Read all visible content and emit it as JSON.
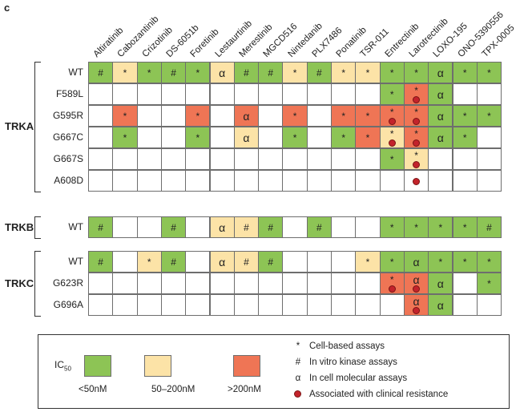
{
  "panel_label": "c",
  "drugs": [
    "Altiratinib",
    "Cabozantinib",
    "Crizotinib",
    "DS-6051b",
    "Foretinib",
    "Lestaurtinib",
    "Merestinib",
    "MGCD516",
    "Nintedanib",
    "PLX7486",
    "Ponatinib",
    "TSR-011",
    "Entrectinib",
    "Larotrectinib",
    "LOXO-195",
    "ONO-5390556",
    "TPX-0005"
  ],
  "colors": {
    "green": "#8dc455",
    "yellow": "#fce3a7",
    "red": "#ef7555",
    "white": "#ffffff",
    "dot": "#c3232b"
  },
  "groups": [
    {
      "name": "TRKA",
      "rows": [
        {
          "label": "WT",
          "cells": [
            [
              "G",
              "#"
            ],
            [
              "Y",
              "*"
            ],
            [
              "G",
              "*"
            ],
            [
              "G",
              "#"
            ],
            [
              "G",
              "*"
            ],
            [
              "Y",
              "α"
            ],
            [
              "G",
              "#"
            ],
            [
              "G",
              "#"
            ],
            [
              "Y",
              "*"
            ],
            [
              "G",
              "#"
            ],
            [
              "Y",
              "*"
            ],
            [
              "Y",
              "*"
            ],
            [
              "G",
              "*"
            ],
            [
              "G",
              "*"
            ],
            [
              "G",
              "α"
            ],
            [
              "G",
              "*"
            ],
            [
              "G",
              "*"
            ]
          ]
        },
        {
          "label": "F589L",
          "cells": [
            [
              "W",
              ""
            ],
            [
              "W",
              ""
            ],
            [
              "W",
              ""
            ],
            [
              "W",
              ""
            ],
            [
              "W",
              ""
            ],
            [
              "W",
              ""
            ],
            [
              "W",
              ""
            ],
            [
              "W",
              ""
            ],
            [
              "W",
              ""
            ],
            [
              "W",
              ""
            ],
            [
              "W",
              ""
            ],
            [
              "W",
              ""
            ],
            [
              "G",
              "*"
            ],
            [
              "R",
              "*",
              1
            ],
            [
              "G",
              "α"
            ],
            [
              "W",
              ""
            ],
            [
              "W",
              ""
            ]
          ]
        },
        {
          "label": "G595R",
          "cells": [
            [
              "W",
              ""
            ],
            [
              "R",
              "*"
            ],
            [
              "W",
              ""
            ],
            [
              "W",
              ""
            ],
            [
              "R",
              "*"
            ],
            [
              "W",
              ""
            ],
            [
              "R",
              "α"
            ],
            [
              "W",
              ""
            ],
            [
              "R",
              "*"
            ],
            [
              "W",
              ""
            ],
            [
              "R",
              "*"
            ],
            [
              "R",
              "*"
            ],
            [
              "R",
              "*",
              1
            ],
            [
              "R",
              "*",
              1
            ],
            [
              "G",
              "α"
            ],
            [
              "G",
              "*"
            ],
            [
              "G",
              "*"
            ]
          ]
        },
        {
          "label": "G667C",
          "cells": [
            [
              "W",
              ""
            ],
            [
              "G",
              "*"
            ],
            [
              "W",
              ""
            ],
            [
              "W",
              ""
            ],
            [
              "G",
              "*"
            ],
            [
              "W",
              ""
            ],
            [
              "Y",
              "α"
            ],
            [
              "W",
              ""
            ],
            [
              "G",
              "*"
            ],
            [
              "W",
              ""
            ],
            [
              "G",
              "*"
            ],
            [
              "R",
              "*"
            ],
            [
              "Y",
              "*",
              1
            ],
            [
              "R",
              "*",
              1
            ],
            [
              "G",
              "α"
            ],
            [
              "G",
              "*"
            ],
            [
              "W",
              ""
            ]
          ]
        },
        {
          "label": "G667S",
          "cells": [
            [
              "W",
              ""
            ],
            [
              "W",
              ""
            ],
            [
              "W",
              ""
            ],
            [
              "W",
              ""
            ],
            [
              "W",
              ""
            ],
            [
              "W",
              ""
            ],
            [
              "W",
              ""
            ],
            [
              "W",
              ""
            ],
            [
              "W",
              ""
            ],
            [
              "W",
              ""
            ],
            [
              "W",
              ""
            ],
            [
              "W",
              ""
            ],
            [
              "G",
              "*"
            ],
            [
              "Y",
              "*",
              1
            ],
            [
              "W",
              ""
            ],
            [
              "W",
              ""
            ],
            [
              "W",
              ""
            ]
          ]
        },
        {
          "label": "A608D",
          "cells": [
            [
              "W",
              ""
            ],
            [
              "W",
              ""
            ],
            [
              "W",
              ""
            ],
            [
              "W",
              ""
            ],
            [
              "W",
              ""
            ],
            [
              "W",
              ""
            ],
            [
              "W",
              ""
            ],
            [
              "W",
              ""
            ],
            [
              "W",
              ""
            ],
            [
              "W",
              ""
            ],
            [
              "W",
              ""
            ],
            [
              "W",
              ""
            ],
            [
              "W",
              ""
            ],
            [
              "W",
              "",
              1
            ],
            [
              "W",
              ""
            ],
            [
              "W",
              ""
            ],
            [
              "W",
              ""
            ]
          ]
        }
      ]
    },
    {
      "name": "TRKB",
      "rows": [
        {
          "label": "WT",
          "cells": [
            [
              "G",
              "#"
            ],
            [
              "W",
              ""
            ],
            [
              "W",
              ""
            ],
            [
              "G",
              "#"
            ],
            [
              "W",
              ""
            ],
            [
              "Y",
              "α"
            ],
            [
              "Y",
              "#"
            ],
            [
              "G",
              "#"
            ],
            [
              "W",
              ""
            ],
            [
              "G",
              "#"
            ],
            [
              "W",
              ""
            ],
            [
              "W",
              ""
            ],
            [
              "G",
              "*"
            ],
            [
              "G",
              "*"
            ],
            [
              "G",
              "*"
            ],
            [
              "G",
              "*"
            ],
            [
              "G",
              "#"
            ]
          ]
        }
      ]
    },
    {
      "name": "TRKC",
      "rows": [
        {
          "label": "WT",
          "cells": [
            [
              "G",
              "#"
            ],
            [
              "W",
              ""
            ],
            [
              "Y",
              "*"
            ],
            [
              "G",
              "#"
            ],
            [
              "W",
              ""
            ],
            [
              "Y",
              "α"
            ],
            [
              "Y",
              "#"
            ],
            [
              "G",
              "#"
            ],
            [
              "W",
              ""
            ],
            [
              "W",
              ""
            ],
            [
              "W",
              ""
            ],
            [
              "Y",
              "*"
            ],
            [
              "G",
              "*"
            ],
            [
              "G",
              "α"
            ],
            [
              "G",
              "*"
            ],
            [
              "G",
              "*"
            ],
            [
              "G",
              "*"
            ]
          ]
        },
        {
          "label": "G623R",
          "cells": [
            [
              "W",
              ""
            ],
            [
              "W",
              ""
            ],
            [
              "W",
              ""
            ],
            [
              "W",
              ""
            ],
            [
              "W",
              ""
            ],
            [
              "W",
              ""
            ],
            [
              "W",
              ""
            ],
            [
              "W",
              ""
            ],
            [
              "W",
              ""
            ],
            [
              "W",
              ""
            ],
            [
              "W",
              ""
            ],
            [
              "W",
              ""
            ],
            [
              "R",
              "*",
              1
            ],
            [
              "R",
              "α",
              1
            ],
            [
              "G",
              "α"
            ],
            [
              "W",
              ""
            ],
            [
              "G",
              "*"
            ]
          ]
        },
        {
          "label": "G696A",
          "cells": [
            [
              "W",
              ""
            ],
            [
              "W",
              ""
            ],
            [
              "W",
              ""
            ],
            [
              "W",
              ""
            ],
            [
              "W",
              ""
            ],
            [
              "W",
              ""
            ],
            [
              "W",
              ""
            ],
            [
              "W",
              ""
            ],
            [
              "W",
              ""
            ],
            [
              "W",
              ""
            ],
            [
              "W",
              ""
            ],
            [
              "W",
              ""
            ],
            [
              "W",
              ""
            ],
            [
              "R",
              "α",
              1
            ],
            [
              "G",
              "α"
            ],
            [
              "W",
              ""
            ],
            [
              "W",
              ""
            ]
          ]
        }
      ]
    }
  ],
  "legend": {
    "ic50_main": "IC",
    "ic50_sub": "50",
    "swatches": [
      {
        "color": "G",
        "label": "<50nM"
      },
      {
        "color": "Y",
        "label": "50–200nM"
      },
      {
        "color": "R",
        "label": ">200nM"
      }
    ],
    "keys": [
      {
        "symbol": "*",
        "label": "Cell-based assays"
      },
      {
        "symbol": "#",
        "label": "In vitro kinase assays"
      },
      {
        "symbol": "α",
        "label": "In cell molecular assays"
      },
      {
        "symbol": "dot",
        "label": "Associated with clinical resistance"
      }
    ]
  }
}
